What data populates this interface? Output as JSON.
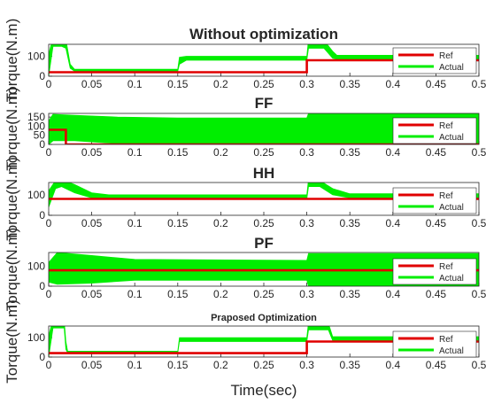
{
  "figure": {
    "xlabel": "Time(sec)"
  },
  "chart_data": [
    {
      "type": "line",
      "title": "Without optimization",
      "ylabel": "Torque(N.m)",
      "xlim": [
        0,
        0.5
      ],
      "ylim": [
        0,
        160
      ],
      "yticks": [
        0,
        100
      ],
      "xticks": [
        "0",
        "0.05",
        "0.1",
        "0.15",
        "0.2",
        "0.25",
        "0.3",
        "0.35",
        "0.4",
        "0.45",
        "0.5"
      ],
      "legend": {
        "position": "right",
        "entries": [
          "Ref",
          "Actual"
        ]
      },
      "series": [
        {
          "name": "Ref",
          "color": "#e00000",
          "x": [
            0,
            0.02,
            0.02,
            0.15,
            0.15,
            0.3,
            0.3,
            0.33,
            0.33,
            0.5
          ],
          "values": [
            20,
            20,
            20,
            20,
            20,
            20,
            80,
            80,
            80,
            80
          ]
        },
        {
          "name": "Actual",
          "color": "#00ee00",
          "band": [
            [
              0.0,
              0,
              110
            ],
            [
              0.005,
              150,
              195
            ],
            [
              0.015,
              150,
              195
            ],
            [
              0.02,
              140,
              185
            ],
            [
              0.025,
              40,
              60
            ],
            [
              0.03,
              25,
              35
            ],
            [
              0.15,
              25,
              35
            ],
            [
              0.152,
              60,
              95
            ],
            [
              0.16,
              80,
              100
            ],
            [
              0.3,
              80,
              100
            ],
            [
              0.302,
              140,
              185
            ],
            [
              0.32,
              140,
              180
            ],
            [
              0.33,
              90,
              125
            ],
            [
              0.335,
              85,
              105
            ],
            [
              0.5,
              85,
              105
            ]
          ]
        }
      ]
    },
    {
      "type": "line",
      "title": "FF",
      "ylabel": "Torque(N.m)",
      "xlim": [
        0,
        0.5
      ],
      "ylim": [
        0,
        170
      ],
      "yticks": [
        0,
        50,
        100,
        150
      ],
      "xticks": [
        "0",
        "0.05",
        "0.1",
        "0.15",
        "0.2",
        "0.25",
        "0.3",
        "0.35",
        "0.4",
        "0.45",
        "0.5"
      ],
      "legend": {
        "position": "right",
        "entries": [
          "Ref",
          "Actual"
        ]
      },
      "series": [
        {
          "name": "Ref",
          "color": "#e00000",
          "x": [
            0,
            0.02,
            0.02,
            0.5
          ],
          "values": [
            80,
            80,
            0,
            0
          ]
        },
        {
          "name": "Actual",
          "color": "#00ee00",
          "band": [
            [
              0.0,
              0,
              130
            ],
            [
              0.005,
              20,
              165
            ],
            [
              0.03,
              20,
              160
            ],
            [
              0.08,
              5,
              150
            ],
            [
              0.15,
              5,
              145
            ],
            [
              0.3,
              5,
              145
            ],
            [
              0.302,
              0,
              170
            ],
            [
              0.5,
              0,
              170
            ]
          ]
        }
      ]
    },
    {
      "type": "line",
      "title": "HH",
      "ylabel": "Torque(N.m)",
      "xlim": [
        0,
        0.5
      ],
      "ylim": [
        0,
        160
      ],
      "yticks": [
        0,
        100
      ],
      "xticks": [
        "0",
        "0.05",
        "0.1",
        "0.15",
        "0.2",
        "0.25",
        "0.3",
        "0.35",
        "0.4",
        "0.45",
        "0.5"
      ],
      "legend": {
        "position": "right",
        "entries": [
          "Ref",
          "Actual"
        ]
      },
      "series": [
        {
          "name": "Ref",
          "color": "#e00000",
          "x": [
            0,
            0.03,
            0.03,
            0.3,
            0.3,
            0.33,
            0.33,
            0.5
          ],
          "values": [
            80,
            80,
            80,
            80,
            80,
            80,
            80,
            80
          ]
        },
        {
          "name": "Actual",
          "color": "#00ee00",
          "band": [
            [
              0.0,
              40,
              120
            ],
            [
              0.008,
              130,
              170
            ],
            [
              0.015,
              140,
              175
            ],
            [
              0.03,
              110,
              150
            ],
            [
              0.05,
              85,
              110
            ],
            [
              0.07,
              80,
              100
            ],
            [
              0.3,
              80,
              100
            ],
            [
              0.302,
              140,
              175
            ],
            [
              0.315,
              140,
              170
            ],
            [
              0.33,
              100,
              130
            ],
            [
              0.35,
              85,
              105
            ],
            [
              0.5,
              85,
              105
            ]
          ]
        }
      ]
    },
    {
      "type": "line",
      "title": "PF",
      "ylabel": "Torque(N.m)",
      "xlim": [
        0,
        0.5
      ],
      "ylim": [
        0,
        170
      ],
      "yticks": [
        0,
        100
      ],
      "xticks": [
        "0",
        "0.05",
        "0.1",
        "0.15",
        "0.2",
        "0.25",
        "0.3",
        "0.35",
        "0.4",
        "0.45",
        "0.5"
      ],
      "legend": {
        "position": "right",
        "entries": [
          "Ref",
          "Actual"
        ]
      },
      "series": [
        {
          "name": "Ref",
          "color": "#e00000",
          "x": [
            0,
            0.03,
            0.03,
            0.5
          ],
          "values": [
            80,
            80,
            80,
            80
          ]
        },
        {
          "name": "Actual",
          "color": "#00ee00",
          "band": [
            [
              0.0,
              20,
              120
            ],
            [
              0.01,
              10,
              170
            ],
            [
              0.05,
              15,
              155
            ],
            [
              0.1,
              30,
              135
            ],
            [
              0.3,
              30,
              130
            ],
            [
              0.302,
              0,
              165
            ],
            [
              0.5,
              0,
              165
            ]
          ]
        }
      ]
    },
    {
      "type": "line",
      "title": "Praposed Optimization",
      "ylabel": "Torque(N.m)",
      "xlim": [
        0,
        0.5
      ],
      "ylim": [
        0,
        160
      ],
      "yticks": [
        0,
        100
      ],
      "xticks": [
        "0",
        "0.05",
        "0.1",
        "0.15",
        "0.2",
        "0.25",
        "0.3",
        "0.35",
        "0.4",
        "0.45",
        "0.5"
      ],
      "legend": {
        "position": "right",
        "entries": [
          "Ref",
          "Actual"
        ]
      },
      "series": [
        {
          "name": "Ref",
          "color": "#e00000",
          "x": [
            0,
            0.02,
            0.02,
            0.15,
            0.15,
            0.3,
            0.3,
            0.33,
            0.33,
            0.5
          ],
          "values": [
            20,
            20,
            20,
            20,
            20,
            20,
            80,
            80,
            80,
            80
          ]
        },
        {
          "name": "Actual",
          "color": "#00ee00",
          "band": [
            [
              0.0,
              0,
              110
            ],
            [
              0.005,
              150,
              195
            ],
            [
              0.018,
              150,
              190
            ],
            [
              0.02,
              40,
              80
            ],
            [
              0.022,
              22,
              30
            ],
            [
              0.15,
              22,
              30
            ],
            [
              0.152,
              80,
              100
            ],
            [
              0.3,
              80,
              100
            ],
            [
              0.302,
              140,
              180
            ],
            [
              0.325,
              140,
              175
            ],
            [
              0.33,
              85,
              105
            ],
            [
              0.5,
              85,
              105
            ]
          ]
        }
      ]
    }
  ]
}
